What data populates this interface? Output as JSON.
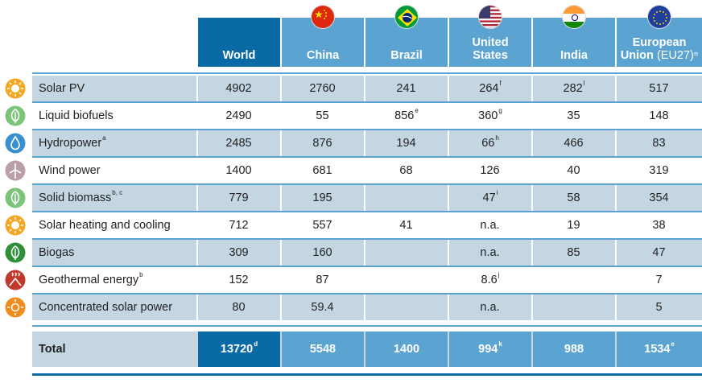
{
  "columns": [
    {
      "id": "world",
      "line1": "World",
      "line2": "",
      "sub": ""
    },
    {
      "id": "china",
      "line1": "China",
      "line2": "",
      "sub": ""
    },
    {
      "id": "brazil",
      "line1": "Brazil",
      "line2": "",
      "sub": ""
    },
    {
      "id": "us",
      "line1": "United",
      "line2": "States",
      "sub": ""
    },
    {
      "id": "india",
      "line1": "India",
      "line2": "",
      "sub": ""
    },
    {
      "id": "eu",
      "line1": "European",
      "line2": "Union",
      "sub": "(EU27)ⁿ"
    }
  ],
  "rows": [
    {
      "label": "Solar PV",
      "label_sup": "",
      "icon": "sun-icon",
      "values": [
        [
          "4902",
          ""
        ],
        [
          "2760",
          ""
        ],
        [
          "241",
          ""
        ],
        [
          "264",
          "f"
        ],
        [
          "282",
          "l"
        ],
        [
          "517",
          ""
        ]
      ]
    },
    {
      "label": "Liquid biofuels",
      "label_sup": "",
      "icon": "leaf-icon",
      "values": [
        [
          "2490",
          ""
        ],
        [
          "55",
          ""
        ],
        [
          "856",
          "e"
        ],
        [
          "360",
          "g"
        ],
        [
          "35",
          ""
        ],
        [
          "148",
          ""
        ]
      ]
    },
    {
      "label": "Hydropower",
      "label_sup": "a",
      "icon": "water-drop-icon",
      "values": [
        [
          "2485",
          ""
        ],
        [
          "876",
          ""
        ],
        [
          "194",
          ""
        ],
        [
          "66",
          "h"
        ],
        [
          "466",
          ""
        ],
        [
          "83",
          ""
        ]
      ]
    },
    {
      "label": "Wind power",
      "label_sup": "",
      "icon": "wind-turbine-icon",
      "values": [
        [
          "1400",
          ""
        ],
        [
          "681",
          ""
        ],
        [
          "68",
          ""
        ],
        [
          "126",
          ""
        ],
        [
          "40",
          ""
        ],
        [
          "319",
          ""
        ]
      ]
    },
    {
      "label": "Solid biomass",
      "label_sup": "b, c",
      "icon": "leaf-icon",
      "values": [
        [
          "779",
          ""
        ],
        [
          "195",
          ""
        ],
        [
          "",
          ""
        ],
        [
          "47",
          "i"
        ],
        [
          "58",
          ""
        ],
        [
          "354",
          ""
        ]
      ]
    },
    {
      "label": "Solar heating and cooling",
      "label_sup": "",
      "icon": "sun-icon",
      "values": [
        [
          "712",
          ""
        ],
        [
          "557",
          ""
        ],
        [
          "41",
          ""
        ],
        [
          "n.a.",
          ""
        ],
        [
          "19",
          ""
        ],
        [
          "38",
          ""
        ]
      ]
    },
    {
      "label": "Biogas",
      "label_sup": "",
      "icon": "biogas-leaf-icon",
      "values": [
        [
          "309",
          ""
        ],
        [
          "160",
          ""
        ],
        [
          "",
          ""
        ],
        [
          "n.a.",
          ""
        ],
        [
          "85",
          ""
        ],
        [
          "47",
          ""
        ]
      ]
    },
    {
      "label": "Geothermal energy",
      "label_sup": "b",
      "icon": "geothermal-icon",
      "values": [
        [
          "152",
          ""
        ],
        [
          "87",
          ""
        ],
        [
          "",
          ""
        ],
        [
          "8.6",
          "j"
        ],
        [
          "",
          ""
        ],
        [
          "7",
          ""
        ]
      ]
    },
    {
      "label": "Concentrated solar power",
      "label_sup": "",
      "icon": "sun-rays-icon",
      "values": [
        [
          "80",
          ""
        ],
        [
          "59.4",
          ""
        ],
        [
          "",
          ""
        ],
        [
          "n.a.",
          ""
        ],
        [
          "",
          ""
        ],
        [
          "5",
          ""
        ]
      ]
    }
  ],
  "total": {
    "label": "Total",
    "values": [
      [
        "13720",
        "d"
      ],
      [
        "5548",
        ""
      ],
      [
        "1400",
        ""
      ],
      [
        "994",
        "k"
      ],
      [
        "988",
        ""
      ],
      [
        "1534",
        "e"
      ]
    ]
  },
  "colors": {
    "world": "#0a6aa6",
    "header": "#5ba3d0",
    "row_shade": "#c5d6e3",
    "sun": "#f5a623",
    "leaf": "#7cc47a",
    "water": "#3a8fd1",
    "wind": "#b9a0a8",
    "biogas": "#2f8f3b",
    "geo": "#c0392b"
  }
}
